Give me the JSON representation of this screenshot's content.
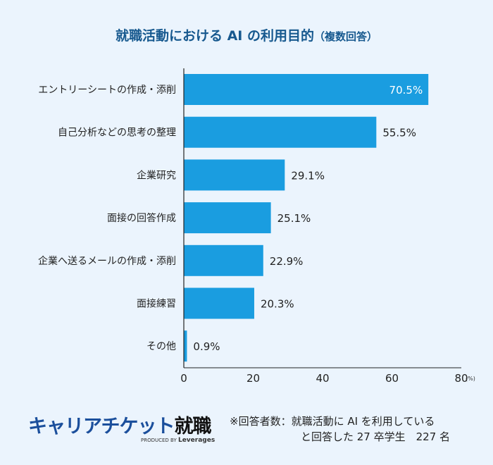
{
  "chart_data": {
    "type": "bar",
    "orientation": "horizontal",
    "title": "就職活動における AI の利用目的",
    "subtitle": "（複数回答）",
    "categories": [
      "エントリーシートの作成・添削",
      "自己分析などの思考の整理",
      "企業研究",
      "面接の回答作成",
      "企業へ送るメールの作成・添削",
      "面接練習",
      "その他"
    ],
    "values": [
      70.5,
      55.5,
      29.1,
      25.1,
      22.9,
      20.3,
      0.9
    ],
    "data_labels": [
      "70.5%",
      "55.5%",
      "29.1%",
      "25.1%",
      "22.9%",
      "20.3%",
      "0.9%"
    ],
    "xlim": [
      0,
      80
    ],
    "xticks": [
      "0",
      "20",
      "40",
      "60",
      "80"
    ],
    "x_unit": "(%)",
    "grid": false,
    "bar_color": "#1a9de0"
  },
  "footer": {
    "logo_main": "キャリアチケット",
    "logo_accent": "就職",
    "logo_produced": "PRODUCED BY",
    "logo_brand": "Leverages",
    "note_line1": "※回答者数：就職活動に AI を利用している",
    "note_line2": "と回答した 27 卒学生　227 名"
  }
}
